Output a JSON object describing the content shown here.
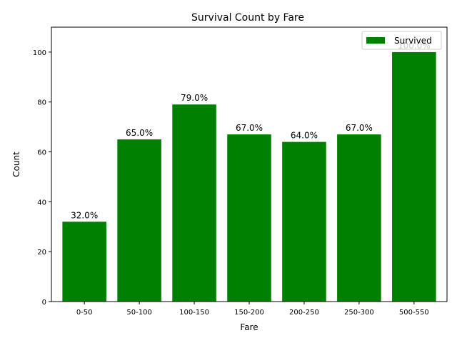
{
  "chart_data": {
    "type": "bar",
    "title": "Survival Count by Fare",
    "xlabel": "Fare",
    "ylabel": "Count",
    "categories": [
      "0-50",
      "50-100",
      "100-150",
      "150-200",
      "200-250",
      "250-300",
      "500-550"
    ],
    "series": [
      {
        "name": "Survived",
        "values": [
          32,
          65,
          79,
          67,
          64,
          67,
          100
        ],
        "color": "#008000"
      }
    ],
    "data_labels": [
      "32.0%",
      "65.0%",
      "79.0%",
      "67.0%",
      "64.0%",
      "67.0%",
      "100.0%"
    ],
    "ylim": [
      0,
      110
    ],
    "yticks": [
      0,
      20,
      40,
      60,
      80,
      100
    ],
    "grid": false,
    "legend_position": "top-right"
  }
}
